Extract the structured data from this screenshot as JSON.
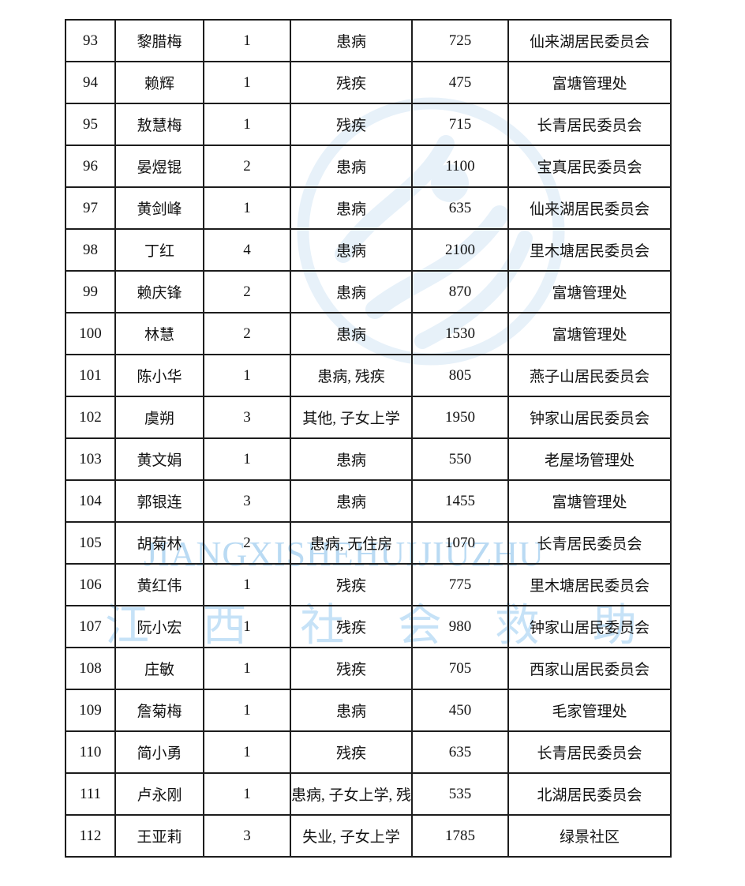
{
  "watermarks": {
    "latin_text": "JIANGXISHEHUIJIUZHU",
    "chinese_text": "江西社会救助",
    "latin_color": "#b9daf3",
    "chinese_color": "#c6e2f7",
    "emblem_icon": "jiangxi-social-assistance-emblem",
    "emblem_color": "#e3eff9"
  },
  "table": {
    "rows": [
      {
        "no": "93",
        "name": "黎腊梅",
        "members": "1",
        "reason": "患病",
        "amount": "725",
        "org": "仙来湖居民委员会"
      },
      {
        "no": "94",
        "name": "赖辉",
        "members": "1",
        "reason": "残疾",
        "amount": "475",
        "org": "富塘管理处"
      },
      {
        "no": "95",
        "name": "敖慧梅",
        "members": "1",
        "reason": "残疾",
        "amount": "715",
        "org": "长青居民委员会"
      },
      {
        "no": "96",
        "name": "晏煜锟",
        "members": "2",
        "reason": "患病",
        "amount": "1100",
        "org": "宝真居民委员会"
      },
      {
        "no": "97",
        "name": "黄剑峰",
        "members": "1",
        "reason": "患病",
        "amount": "635",
        "org": "仙来湖居民委员会"
      },
      {
        "no": "98",
        "name": "丁红",
        "members": "4",
        "reason": "患病",
        "amount": "2100",
        "org": "里木塘居民委员会"
      },
      {
        "no": "99",
        "name": "赖庆锋",
        "members": "2",
        "reason": "患病",
        "amount": "870",
        "org": "富塘管理处"
      },
      {
        "no": "100",
        "name": "林慧",
        "members": "2",
        "reason": "患病",
        "amount": "1530",
        "org": "富塘管理处"
      },
      {
        "no": "101",
        "name": "陈小华",
        "members": "1",
        "reason": "患病, 残疾",
        "amount": "805",
        "org": "燕子山居民委员会"
      },
      {
        "no": "102",
        "name": "虞朔",
        "members": "3",
        "reason": "其他, 子女上学",
        "amount": "1950",
        "org": "钟家山居民委员会"
      },
      {
        "no": "103",
        "name": "黄文娟",
        "members": "1",
        "reason": "患病",
        "amount": "550",
        "org": "老屋场管理处"
      },
      {
        "no": "104",
        "name": "郭银连",
        "members": "3",
        "reason": "患病",
        "amount": "1455",
        "org": "富塘管理处"
      },
      {
        "no": "105",
        "name": "胡菊林",
        "members": "2",
        "reason": "患病, 无住房",
        "amount": "1070",
        "org": "长青居民委员会"
      },
      {
        "no": "106",
        "name": "黄红伟",
        "members": "1",
        "reason": "残疾",
        "amount": "775",
        "org": "里木塘居民委员会"
      },
      {
        "no": "107",
        "name": "阮小宏",
        "members": "1",
        "reason": "残疾",
        "amount": "980",
        "org": "钟家山居民委员会"
      },
      {
        "no": "108",
        "name": "庄敏",
        "members": "1",
        "reason": "残疾",
        "amount": "705",
        "org": "西家山居民委员会"
      },
      {
        "no": "109",
        "name": "詹菊梅",
        "members": "1",
        "reason": "患病",
        "amount": "450",
        "org": "毛家管理处"
      },
      {
        "no": "110",
        "name": "简小勇",
        "members": "1",
        "reason": "残疾",
        "amount": "635",
        "org": "长青居民委员会"
      },
      {
        "no": "111",
        "name": "卢永刚",
        "members": "1",
        "reason": "患病, 子女上学, 残",
        "amount": "535",
        "org": "北湖居民委员会"
      },
      {
        "no": "112",
        "name": "王亚莉",
        "members": "3",
        "reason": "失业, 子女上学",
        "amount": "1785",
        "org": "绿景社区"
      }
    ]
  }
}
